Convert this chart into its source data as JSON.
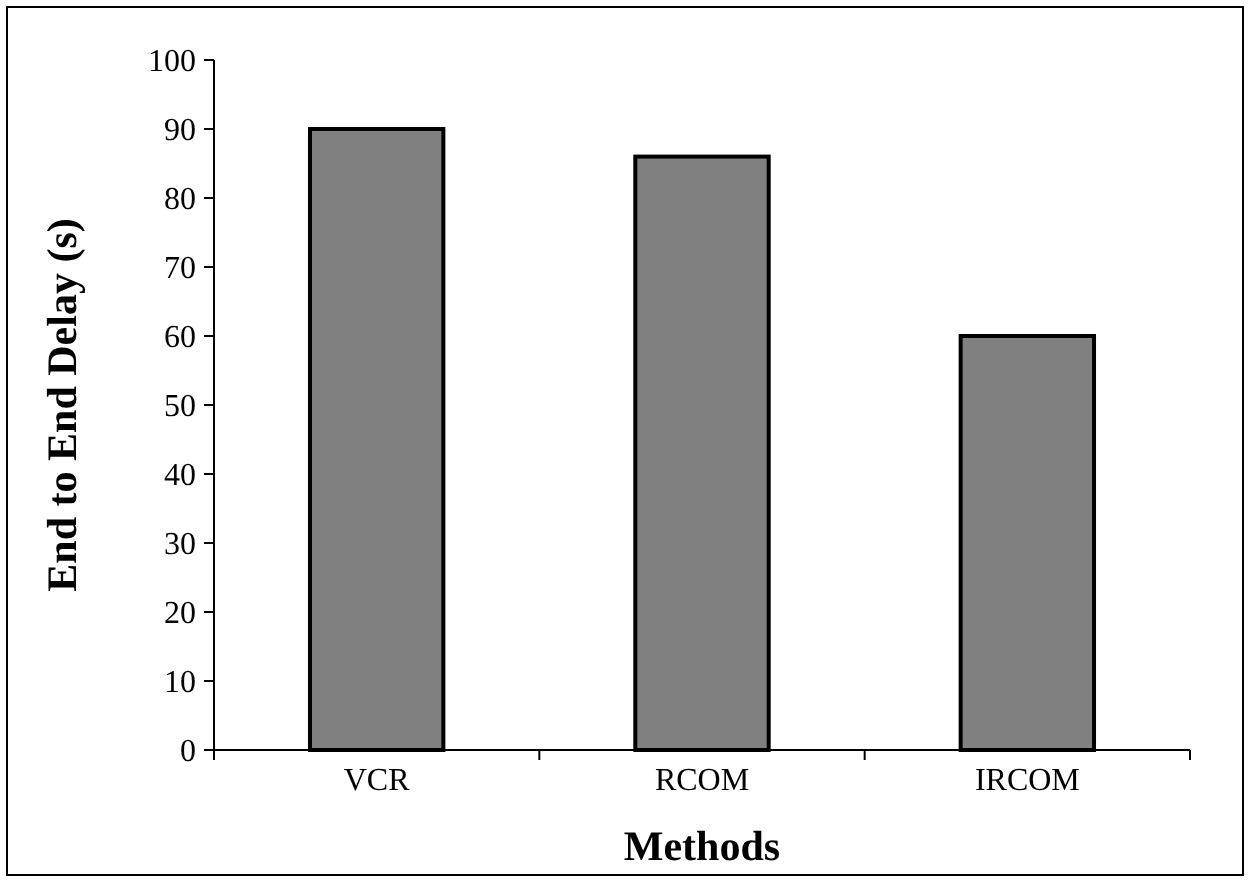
{
  "chart_data": {
    "type": "bar",
    "xlabel": "Methods",
    "ylabel": "End to End Delay (s)",
    "categories": [
      "VCR",
      "RCOM",
      "IRCOM"
    ],
    "values": [
      90,
      86,
      60
    ],
    "color": "#808080",
    "ylim": [
      0,
      100
    ],
    "yticks": [
      0,
      10,
      20,
      30,
      40,
      50,
      60,
      70,
      80,
      90,
      100
    ],
    "grid": false
  }
}
